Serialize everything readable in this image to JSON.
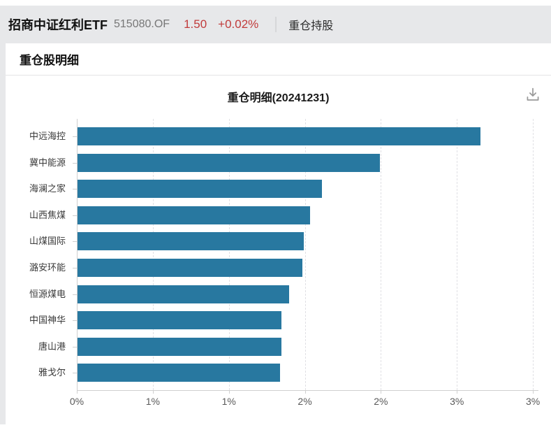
{
  "header": {
    "fund_name": "招商中证红利ETF",
    "fund_code": "515080.OF",
    "price": "1.50",
    "change": "+0.02%",
    "tab": "重仓持股"
  },
  "section": {
    "title": "重仓股明细"
  },
  "icons": {
    "download": "download-icon"
  },
  "colors": {
    "bar": "#2878a0",
    "up_red": "#c13b3b",
    "page_gray": "#e7e8ea"
  },
  "chart_data": {
    "type": "bar",
    "orientation": "horizontal",
    "title": "重仓明细(20241231)",
    "categories": [
      "中远海控",
      "冀中能源",
      "海澜之家",
      "山西焦煤",
      "山煤国际",
      "潞安环能",
      "恒源煤电",
      "中国神华",
      "唐山港",
      "雅戈尔"
    ],
    "values": [
      2.65,
      1.99,
      1.61,
      1.53,
      1.49,
      1.48,
      1.39,
      1.34,
      1.34,
      1.33
    ],
    "unit": "%",
    "xlim": [
      0,
      3.05
    ],
    "x_tick_values": [
      0,
      0.5,
      1,
      1.5,
      2,
      2.5,
      3
    ],
    "x_tick_labels": [
      "0%",
      "1%",
      "1%",
      "2%",
      "2%",
      "3%",
      "3%"
    ],
    "grid": "dashed-vertical",
    "legend": "none"
  }
}
